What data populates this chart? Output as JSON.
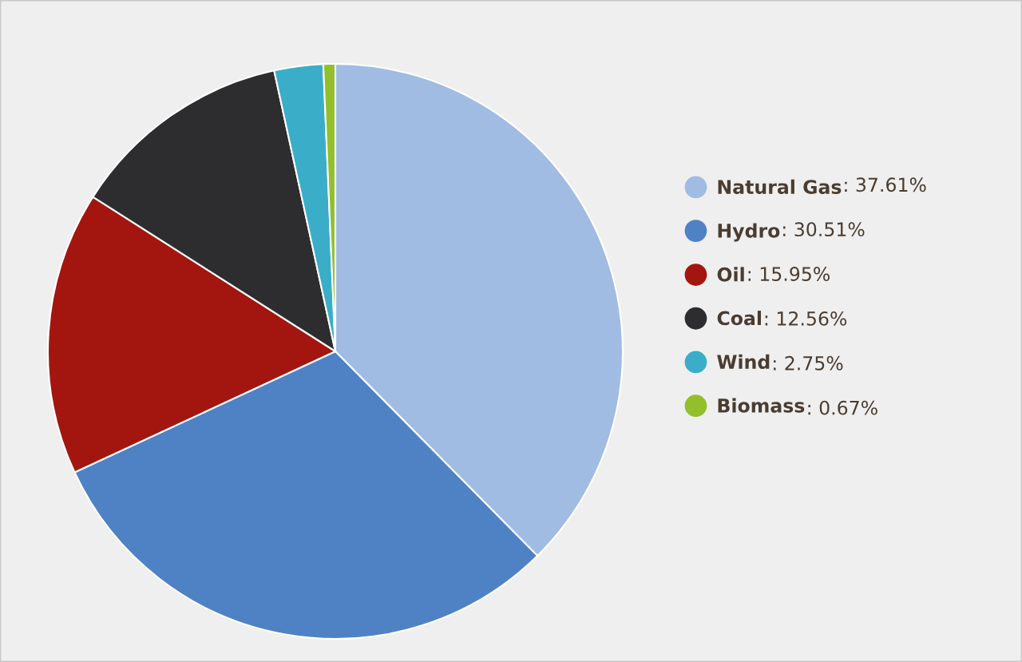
{
  "chart_data": {
    "type": "pie",
    "categories": [
      "Natural Gas",
      "Hydro",
      "Oil",
      "Coal",
      "Wind",
      "Biomass"
    ],
    "values": [
      37.61,
      30.51,
      15.95,
      12.56,
      2.75,
      0.67
    ],
    "value_labels": [
      ": 37.61%",
      ": 30.51%",
      ": 15.95%",
      ": 12.56%",
      ": 2.75%",
      ": 0.67%"
    ],
    "colors": [
      "#a0bce3",
      "#4f82c4",
      "#a3160f",
      "#2d2d2f",
      "#3aaec8",
      "#93bf2b"
    ],
    "legend": "right"
  }
}
